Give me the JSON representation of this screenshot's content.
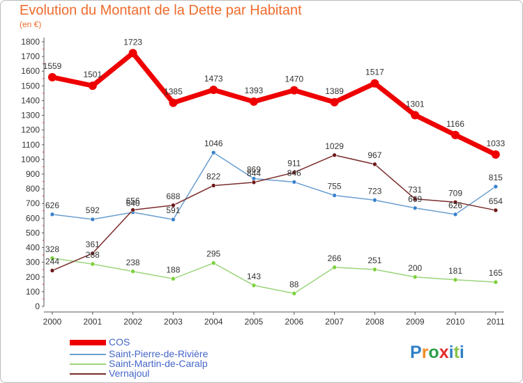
{
  "title": "Evolution du Montant de la Dette par Habitant",
  "subtitle": "(en €)",
  "logo": {
    "letters": [
      {
        "ch": "P",
        "color": "#2e7fc4"
      },
      {
        "ch": "r",
        "color": "#f08a24"
      },
      {
        "ch": "o",
        "color": "#2e9f4a"
      },
      {
        "ch": "x",
        "color": "#e22e2e"
      },
      {
        "ch": "i",
        "color": "#2e7fc4"
      },
      {
        "ch": "t",
        "color": "#8bc34a"
      },
      {
        "ch": "i",
        "color": "#2e7fc4"
      }
    ]
  },
  "chart_data": {
    "type": "line",
    "title": "Evolution du Montant de la Dette par Habitant",
    "subtitle": "(en €)",
    "xlabel": "",
    "ylabel": "",
    "ylim": [
      0,
      1800
    ],
    "yticks": [
      0,
      100,
      200,
      300,
      400,
      500,
      600,
      700,
      800,
      900,
      1000,
      1100,
      1200,
      1300,
      1400,
      1500,
      1600,
      1700,
      1800
    ],
    "grid": false,
    "legend": "bottom-left",
    "categories": [
      "2000",
      "2001",
      "2002",
      "2003",
      "2004",
      "2005",
      "2006",
      "2007",
      "2008",
      "2009",
      "2010",
      "2011"
    ],
    "series": [
      {
        "name": "COS",
        "values": [
          1559,
          1501,
          1723,
          1385,
          1473,
          1393,
          1470,
          1389,
          1517,
          1301,
          1166,
          1033
        ],
        "color": "#ee0000",
        "marker": "#ee0000",
        "width": 7,
        "marker_r": 6
      },
      {
        "name": "Saint-Pierre-de-Rivière",
        "values": [
          626,
          592,
          640,
          591,
          1046,
          869,
          846,
          755,
          723,
          669,
          626,
          815
        ],
        "color": "#6a9ecf",
        "marker": "#3a82cc",
        "width": 1.5,
        "marker_r": 3
      },
      {
        "name": "Saint-Martin-de-Caralp",
        "values": [
          328,
          288,
          238,
          188,
          295,
          143,
          88,
          266,
          251,
          200,
          181,
          165
        ],
        "color": "#9ad47a",
        "marker": "#7cd13a",
        "width": 1.5,
        "marker_r": 3
      },
      {
        "name": "Vernajoul",
        "values": [
          244,
          361,
          656,
          688,
          822,
          844,
          911,
          1029,
          967,
          731,
          709,
          654
        ],
        "color": "#7a2b2b",
        "marker": "#6e1818",
        "width": 1.5,
        "marker_r": 3
      }
    ]
  }
}
